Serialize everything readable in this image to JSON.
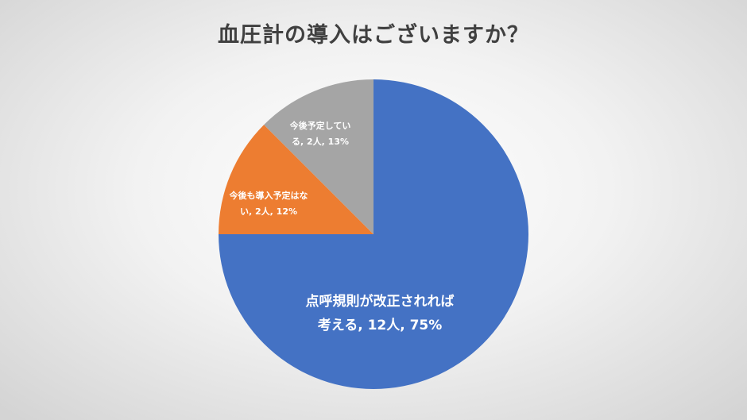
{
  "chart_data": {
    "type": "pie",
    "title": "血圧計の導入はございますか？",
    "slices": [
      {
        "label_lines": [
          "点呼規則が改正されれば",
          "考える, 12人, 75%"
        ],
        "count": 12,
        "percent": 75,
        "color": "#4472C4",
        "text_color": "#FFFFFF"
      },
      {
        "label_lines": [
          "今後も導入予定はな",
          "い, 2人, 12%"
        ],
        "count": 2,
        "percent": 12,
        "color": "#ED7D31",
        "text_color": "#FFFFFF"
      },
      {
        "label_lines": [
          "今後予定してい",
          "る, 2人, 13%"
        ],
        "count": 2,
        "percent": 13,
        "color": "#A5A5A5",
        "text_color": "#FFFFFF"
      }
    ],
    "start_angle": "12 o'clock",
    "direction": "clockwise",
    "legend": "none"
  }
}
